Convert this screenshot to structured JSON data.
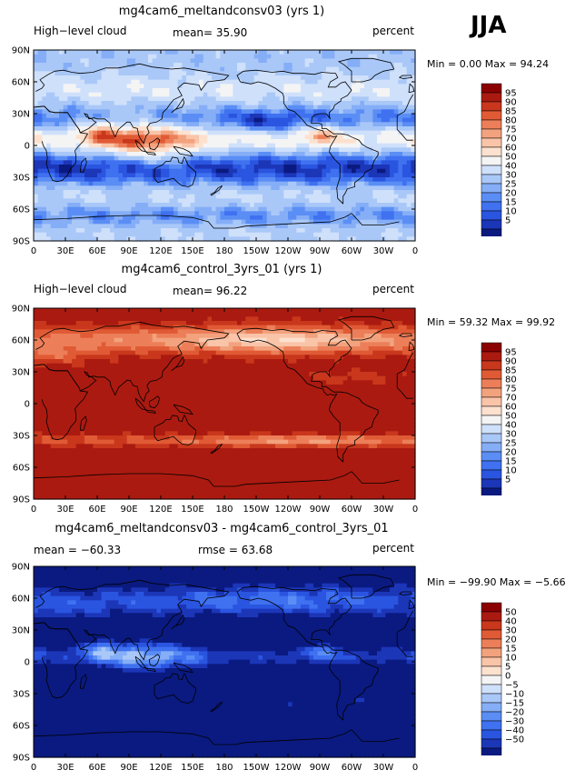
{
  "season": "JJA",
  "colors": {
    "seq": [
      "#0a1a80",
      "#1c36b8",
      "#2a55e0",
      "#3f71f0",
      "#5b8ef5",
      "#85aef7",
      "#a9c8f8",
      "#cfe0fb",
      "#f4f4f4",
      "#fde1cf",
      "#f9c4a8",
      "#f3a27e",
      "#ec7f59",
      "#e05b35",
      "#c9371c",
      "#ab1a10",
      "#8b0000"
    ],
    "coast": "#000000"
  },
  "chart_data": [
    {
      "type": "heatmap",
      "title": "mg4cam6_meltandconsv03 (yrs 1)",
      "left_label": "High−level cloud",
      "center_label": "mean=   35.90",
      "right_label": "percent",
      "min_max": "Min =    0.00 Max =   94.24",
      "mean": 35.9,
      "min": 0.0,
      "max": 94.24,
      "field": "ctrl_low",
      "xticks": [
        "0",
        "30E",
        "60E",
        "90E",
        "120E",
        "150E",
        "180",
        "150W",
        "120W",
        "90W",
        "60W",
        "30W",
        "0"
      ],
      "yticks": [
        "90N",
        "60N",
        "30N",
        "0",
        "30S",
        "60S",
        "90S"
      ],
      "levels": [
        5,
        10,
        15,
        20,
        25,
        30,
        40,
        50,
        60,
        70,
        75,
        80,
        85,
        90,
        95
      ],
      "colorbar_labels": [
        "95",
        "90",
        "85",
        "80",
        "75",
        "70",
        "60",
        "50",
        "40",
        "30",
        "25",
        "20",
        "15",
        "10",
        "5"
      ]
    },
    {
      "type": "heatmap",
      "title": "mg4cam6_control_3yrs_01 (yrs 1)",
      "left_label": "High−level cloud",
      "center_label": "mean=   96.22",
      "right_label": "percent",
      "min_max": "Min =   59.32 Max =   99.92",
      "mean": 96.22,
      "min": 59.32,
      "max": 99.92,
      "field": "ctrl_high",
      "xticks": [
        "0",
        "30E",
        "60E",
        "90E",
        "120E",
        "150E",
        "180",
        "150W",
        "120W",
        "90W",
        "60W",
        "30W",
        "0"
      ],
      "yticks": [
        "90N",
        "60N",
        "30N",
        "0",
        "30S",
        "60S",
        "90S"
      ],
      "levels": [
        5,
        10,
        15,
        20,
        25,
        30,
        40,
        50,
        60,
        70,
        75,
        80,
        85,
        90,
        95
      ],
      "colorbar_labels": [
        "95",
        "90",
        "85",
        "80",
        "75",
        "70",
        "60",
        "50",
        "40",
        "30",
        "25",
        "20",
        "15",
        "10",
        "5"
      ]
    },
    {
      "type": "heatmap",
      "title": "mg4cam6_meltandconsv03 - mg4cam6_control_3yrs_01",
      "left_label": "mean = −60.33",
      "center_label": "rmse =   63.68",
      "right_label": "percent",
      "min_max": "Min =  −99.90 Max =   −5.66",
      "mean": -60.33,
      "rmse": 63.68,
      "min": -99.9,
      "max": -5.66,
      "field": "diff",
      "xticks": [
        "0",
        "30E",
        "60E",
        "90E",
        "120E",
        "150E",
        "180",
        "150W",
        "120W",
        "90W",
        "60W",
        "30W",
        "0"
      ],
      "yticks": [
        "90N",
        "60N",
        "30N",
        "0",
        "30S",
        "60S",
        "90S"
      ],
      "levels": [
        -50,
        -40,
        -30,
        -20,
        -15,
        -10,
        -5,
        0,
        5,
        10,
        15,
        20,
        30,
        40,
        50
      ],
      "colorbar_labels": [
        "50",
        "40",
        "30",
        "20",
        "15",
        "10",
        "5",
        "0",
        "−5",
        "−10",
        "−15",
        "−20",
        "−30",
        "−40",
        "−50"
      ]
    }
  ]
}
